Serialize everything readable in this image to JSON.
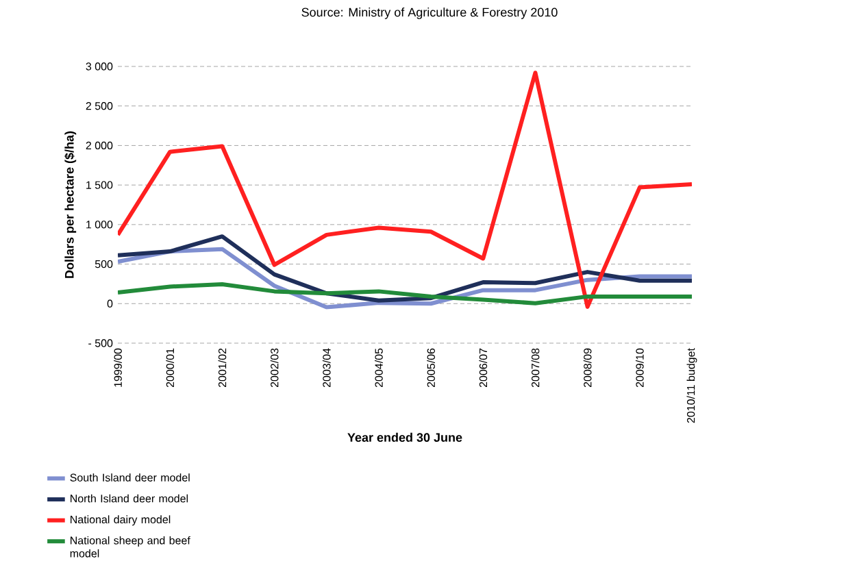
{
  "chart_data": {
    "type": "line",
    "xlabel": "Year ended 30 June",
    "ylabel": "Dollars per hectare ($/ha)",
    "annotations": [
      "Source: Ministry of Agriculture & Forestry 2010"
    ],
    "categories": [
      "1999/00",
      "2000/01",
      "2001/02",
      "2002/03",
      "2003/04",
      "2004/05",
      "2005/06",
      "2006/07",
      "2007/08",
      "2008/09",
      "2009/10",
      "2010/11 budget"
    ],
    "series": [
      {
        "name": "South Island deer model",
        "color": "#7f8fd0",
        "values": [
          530,
          660,
          690,
          225,
          -45,
          10,
          0,
          170,
          170,
          300,
          345,
          345
        ]
      },
      {
        "name": "North Island deer model",
        "color": "#1f2f5a",
        "values": [
          610,
          660,
          850,
          370,
          130,
          40,
          70,
          270,
          260,
          400,
          290,
          290
        ]
      },
      {
        "name": "National dairy model",
        "color": "#ff2020",
        "values": [
          870,
          1920,
          1990,
          490,
          870,
          960,
          910,
          570,
          2920,
          -40,
          1470,
          1510
        ]
      },
      {
        "name": "National sheep and beef model",
        "color": "#228b3a",
        "values": [
          140,
          215,
          245,
          155,
          130,
          155,
          90,
          50,
          5,
          90,
          90,
          90
        ]
      }
    ],
    "ylim": [
      -500,
      3000
    ],
    "yticks": [
      {
        "value": -500,
        "label": "- 500"
      },
      0,
      500,
      {
        "value": 1000,
        "label": "1 000"
      },
      {
        "value": 1500,
        "label": "1 500"
      },
      {
        "value": 2000,
        "label": "2 000"
      },
      {
        "value": 2500,
        "label": "2 500"
      },
      {
        "value": 3000,
        "label": "3 000"
      }
    ],
    "grid": "y",
    "legend": "bottom left",
    "marker": "none",
    "line_style": "solid"
  }
}
